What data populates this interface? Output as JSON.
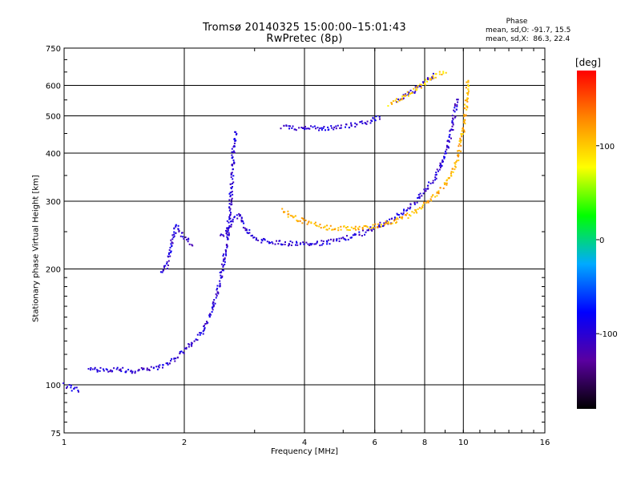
{
  "chart_data": {
    "type": "scatter",
    "title": "Tromsø 20140325 15:00:00–15:01:43",
    "subtitle": "RwPretec (8p)",
    "xlabel": "Frequency [MHz]",
    "ylabel": "Stationary phase Virtual Height [km]",
    "x_scale": "log",
    "y_scale": "log",
    "xlim": [
      1,
      16
    ],
    "ylim": [
      75,
      750
    ],
    "x_ticks": [
      1,
      2,
      4,
      6,
      8,
      10,
      16
    ],
    "x_tick_labels": [
      "1",
      "2",
      "4",
      "6",
      "8",
      "10",
      "16"
    ],
    "y_ticks": [
      75,
      100,
      200,
      300,
      400,
      500,
      600,
      750
    ],
    "y_tick_labels": [
      "75",
      "100",
      "200",
      "300",
      "400",
      "500",
      "600",
      "750"
    ],
    "grid": true,
    "phase_box": {
      "title": "Phase",
      "o_line": "mean, sd,O: -91.7, 15.5",
      "x_line": "mean, sd,X:  86.3, 22.4"
    },
    "colorbar": {
      "unit": "[deg]",
      "range": [
        -180,
        180
      ],
      "ticks": [
        100,
        0,
        -100
      ],
      "tick_labels": [
        "100",
        "0",
        "-100"
      ],
      "colors": [
        "#000000",
        "#5a00a0",
        "#0000ff",
        "#00aaff",
        "#00ff00",
        "#ffff00",
        "#ff8800",
        "#ff0000"
      ]
    },
    "series": [
      {
        "curve": [
          [
            1.0,
            100
          ],
          [
            1.05,
            98
          ],
          [
            1.1,
            97
          ]
        ],
        "phase": -100
      },
      {
        "curve": [
          [
            1.15,
            112
          ],
          [
            1.2,
            110
          ],
          [
            1.3,
            110
          ],
          [
            1.4,
            110
          ],
          [
            1.5,
            109
          ],
          [
            1.6,
            110
          ],
          [
            1.7,
            111
          ],
          [
            1.8,
            114
          ],
          [
            1.9,
            118
          ],
          [
            2.0,
            124
          ],
          [
            2.1,
            130
          ],
          [
            2.2,
            137
          ],
          [
            2.3,
            150
          ],
          [
            2.38,
            168
          ],
          [
            2.45,
            188
          ],
          [
            2.5,
            210
          ],
          [
            2.55,
            245
          ],
          [
            2.6,
            300
          ],
          [
            2.63,
            360
          ],
          [
            2.65,
            420
          ],
          [
            2.67,
            460
          ]
        ],
        "phase": -100
      },
      {
        "curve": [
          [
            1.75,
            195
          ],
          [
            1.8,
            205
          ],
          [
            1.83,
            220
          ],
          [
            1.86,
            240
          ],
          [
            1.9,
            260
          ],
          [
            1.95,
            248
          ],
          [
            2.0,
            240
          ],
          [
            2.05,
            236
          ],
          [
            2.1,
            232
          ]
        ],
        "phase": -100
      },
      {
        "curve": [
          [
            2.45,
            245
          ],
          [
            2.55,
            250
          ],
          [
            2.65,
            270
          ],
          [
            2.75,
            280
          ],
          [
            2.85,
            255
          ],
          [
            2.95,
            242
          ],
          [
            3.1,
            238
          ],
          [
            3.3,
            236
          ],
          [
            3.6,
            234
          ],
          [
            4.0,
            234
          ],
          [
            4.5,
            235
          ],
          [
            5.0,
            240
          ],
          [
            5.5,
            248
          ],
          [
            6.0,
            258
          ],
          [
            6.5,
            268
          ],
          [
            7.0,
            280
          ],
          [
            7.5,
            298
          ],
          [
            8.0,
            322
          ],
          [
            8.5,
            352
          ],
          [
            9.0,
            400
          ],
          [
            9.3,
            460
          ],
          [
            9.5,
            520
          ],
          [
            9.6,
            560
          ]
        ],
        "phase": -100
      },
      {
        "curve": [
          [
            3.5,
            470
          ],
          [
            3.8,
            468
          ],
          [
            4.2,
            467
          ],
          [
            4.6,
            468
          ],
          [
            5.0,
            472
          ],
          [
            5.5,
            480
          ],
          [
            5.9,
            490
          ],
          [
            6.2,
            500
          ]
        ],
        "phase": -100
      },
      {
        "curve": [
          [
            6.8,
            550
          ],
          [
            7.2,
            570
          ],
          [
            7.6,
            590
          ],
          [
            8.0,
            615
          ],
          [
            8.3,
            630
          ],
          [
            8.5,
            645
          ]
        ],
        "phase": -100
      },
      {
        "curve": [
          [
            3.5,
            285
          ],
          [
            3.8,
            272
          ],
          [
            4.2,
            262
          ],
          [
            4.6,
            257
          ],
          [
            5.0,
            256
          ],
          [
            5.5,
            257
          ],
          [
            6.0,
            260
          ],
          [
            6.5,
            265
          ],
          [
            7.0,
            272
          ],
          [
            7.5,
            282
          ],
          [
            8.0,
            295
          ],
          [
            8.5,
            312
          ],
          [
            9.0,
            335
          ],
          [
            9.5,
            370
          ],
          [
            9.8,
            420
          ],
          [
            10.0,
            480
          ],
          [
            10.1,
            530
          ],
          [
            10.2,
            580
          ],
          [
            10.2,
            630
          ]
        ],
        "phase": 110
      },
      {
        "curve": [
          [
            6.5,
            540
          ],
          [
            7.0,
            560
          ],
          [
            7.5,
            585
          ],
          [
            8.0,
            615
          ],
          [
            8.5,
            640
          ],
          [
            9.0,
            655
          ]
        ],
        "phase": 100
      }
    ]
  }
}
